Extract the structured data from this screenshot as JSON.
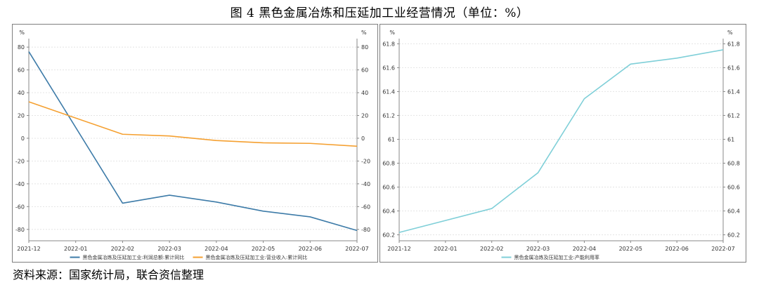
{
  "title": "图 4    黑色金属冶炼和压延加工业经营情况（单位：%）",
  "source": "资料来源：国家统计局，联合资信整理",
  "chart_data": [
    {
      "type": "line",
      "unit": "%",
      "x": [
        "2021-12",
        "2022-01",
        "2022-02",
        "2022-03",
        "2022-04",
        "2022-05",
        "2022-06",
        "2022-07"
      ],
      "series": [
        {
          "name": "黑色金属冶炼及压延加工业:利润总额:累计同比",
          "color": "#3d7ba8",
          "points": [
            [
              0,
              76
            ],
            [
              2,
              -57
            ],
            [
              3,
              -50
            ],
            [
              4,
              -56
            ],
            [
              5,
              -64
            ],
            [
              6,
              -69
            ],
            [
              7,
              -81
            ]
          ]
        },
        {
          "name": "黑色金属冶炼及压延加工业:营业收入:累计同比",
          "color": "#f5a030",
          "points": [
            [
              0,
              32
            ],
            [
              2,
              3.5
            ],
            [
              3,
              2
            ],
            [
              4,
              -2
            ],
            [
              5,
              -4
            ],
            [
              6,
              -4.5
            ],
            [
              7,
              -7
            ]
          ]
        }
      ],
      "ylim": [
        -90,
        85
      ],
      "yticks": [
        -80,
        -60,
        -40,
        -20,
        0,
        20,
        40,
        60,
        80
      ],
      "grid": true,
      "legend": "bottom"
    },
    {
      "type": "line",
      "unit": "%",
      "x": [
        "2021-12",
        "2022-01",
        "2022-02",
        "2022-03",
        "2022-04",
        "2022-05",
        "2022-06",
        "2022-07"
      ],
      "series": [
        {
          "name": "黑色金属冶炼及压延加工业:产能利用率",
          "color": "#7fcfd8",
          "points": [
            [
              0,
              60.22
            ],
            [
              2,
              60.42
            ],
            [
              3,
              60.72
            ],
            [
              4,
              61.34
            ],
            [
              5,
              61.63
            ],
            [
              6,
              61.68
            ],
            [
              7,
              61.75
            ]
          ]
        }
      ],
      "ylim": [
        60.15,
        61.82
      ],
      "yticks": [
        60.2,
        60.4,
        60.6,
        60.8,
        61,
        61.2,
        61.4,
        61.6,
        61.8
      ],
      "grid": true,
      "legend": "bottom"
    }
  ]
}
